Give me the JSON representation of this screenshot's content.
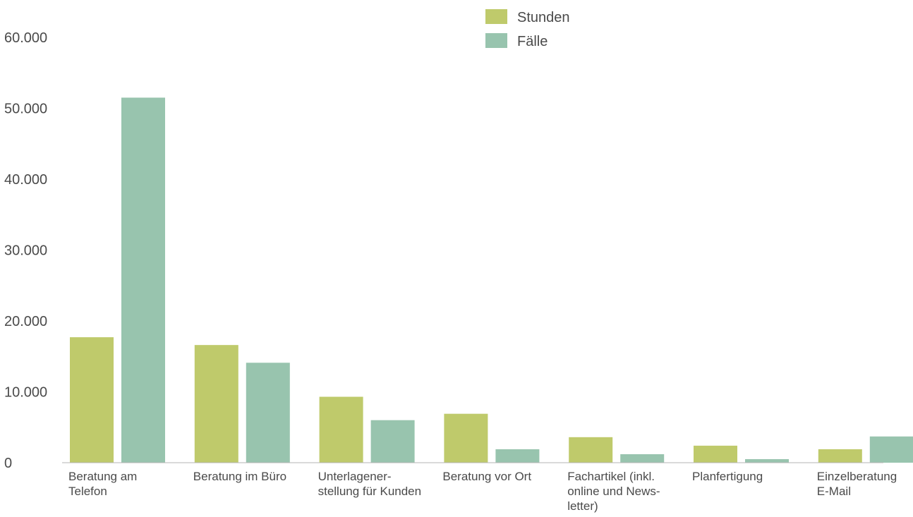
{
  "chart_data": {
    "type": "bar",
    "title": "",
    "xlabel": "",
    "ylabel": "",
    "ylim": [
      0,
      60000
    ],
    "yticks": [
      0,
      10000,
      20000,
      30000,
      40000,
      50000,
      60000
    ],
    "ytick_labels": [
      "0",
      "10.000",
      "20.000",
      "30.000",
      "40.000",
      "50.000",
      "60.000"
    ],
    "grid": true,
    "legend_position": "top-center",
    "categories": [
      [
        "Beratung am",
        "Telefon"
      ],
      [
        "Beratung im Büro"
      ],
      [
        "Unterlagener-",
        "stellung für Kunden"
      ],
      [
        "Beratung vor Ort"
      ],
      [
        "Fachartikel (inkl.",
        "online und News-",
        "letter)"
      ],
      [
        "Planfertigung"
      ],
      [
        "Einzelberatung",
        "E-Mail"
      ]
    ],
    "series": [
      {
        "name": "Stunden",
        "color": "#bfca6b",
        "values": [
          17700,
          16600,
          9300,
          6900,
          3600,
          2400,
          1900
        ]
      },
      {
        "name": "Fälle",
        "color": "#98c4ae",
        "values": [
          51500,
          14100,
          6000,
          1900,
          1200,
          500,
          3700
        ]
      }
    ]
  }
}
